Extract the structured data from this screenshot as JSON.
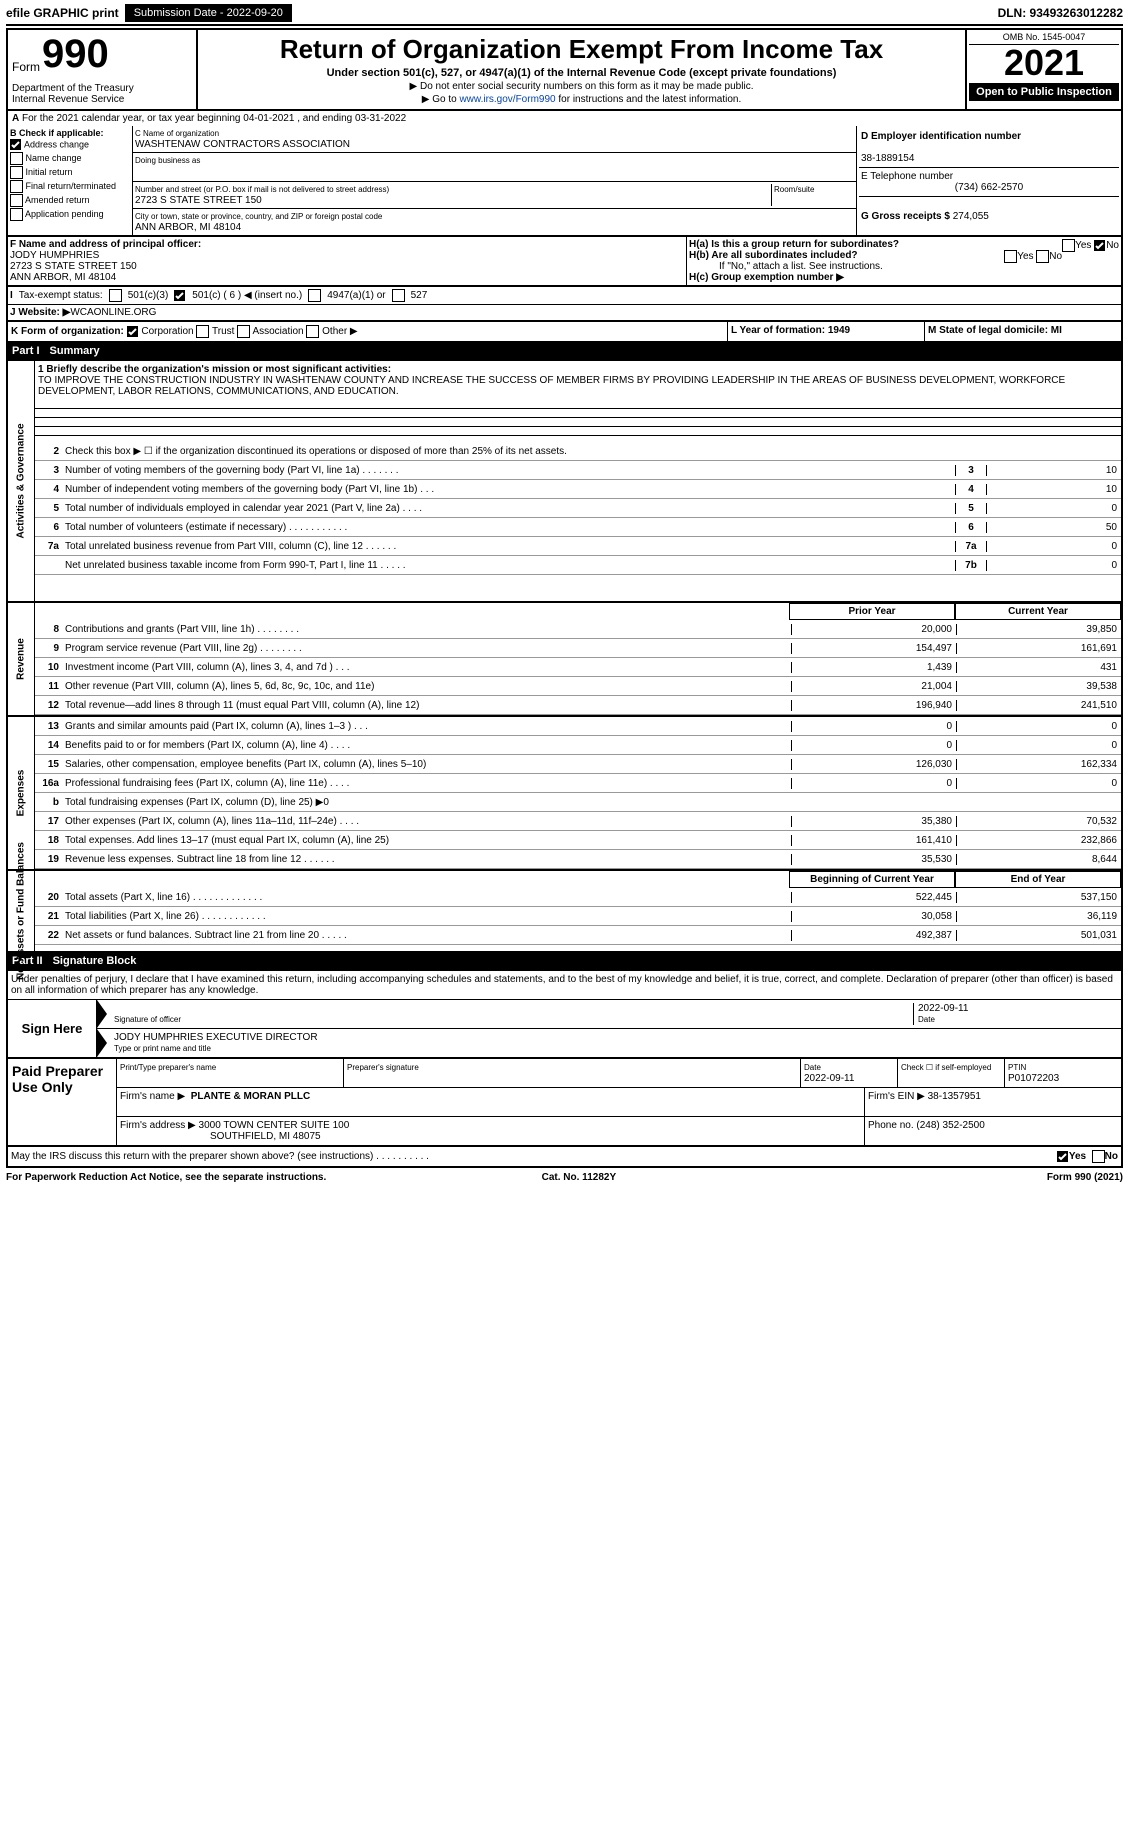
{
  "topbar": {
    "efile": "efile GRAPHIC print",
    "submit_btn": "Submission Date - 2022-09-20",
    "dln": "DLN: 93493263012282"
  },
  "header": {
    "form_word": "Form",
    "form_num": "990",
    "title": "Return of Organization Exempt From Income Tax",
    "sub": "Under section 501(c), 527, or 4947(a)(1) of the Internal Revenue Code (except private foundations)",
    "note1": "▶ Do not enter social security numbers on this form as it may be made public.",
    "note2_pre": "▶ Go to ",
    "note2_link": "www.irs.gov/Form990",
    "note2_post": " for instructions and the latest information.",
    "dept": "Department of the Treasury\nInternal Revenue Service",
    "omb": "OMB No. 1545-0047",
    "year": "2021",
    "open": "Open to Public Inspection"
  },
  "period": "For the 2021 calendar year, or tax year beginning 04-01-2021    , and ending 03-31-2022",
  "checkB": {
    "title": "B Check if applicable:",
    "items": [
      "Address change",
      "Name change",
      "Initial return",
      "Final return/terminated",
      "Amended return",
      "Application pending"
    ],
    "checked": [
      true,
      false,
      false,
      false,
      false,
      false
    ]
  },
  "blockC": {
    "name_lbl": "C Name of organization",
    "name": "WASHTENAW CONTRACTORS ASSOCIATION",
    "dba_lbl": "Doing business as",
    "dba": "",
    "street_lbl": "Number and street (or P.O. box if mail is not delivered to street address)",
    "room_lbl": "Room/suite",
    "street": "2723 S STATE STREET 150",
    "city_lbl": "City or town, state or province, country, and ZIP or foreign postal code",
    "city": "ANN ARBOR, MI  48104"
  },
  "blockD": {
    "ein_lbl": "D Employer identification number",
    "ein": "38-1889154",
    "phone_lbl": "E Telephone number",
    "phone": "(734) 662-2570",
    "gross_lbl": "G Gross receipts $",
    "gross": "274,055"
  },
  "blockF": {
    "lbl": "F Name and address of principal officer:",
    "l1": "JODY HUMPHRIES",
    "l2": "2723 S STATE STREET 150",
    "l3": "ANN ARBOR, MI  48104"
  },
  "blockH": {
    "ha": "H(a)  Is this a group return for subordinates?",
    "ha_yes": "Yes",
    "ha_no": "No",
    "hb": "H(b)  Are all subordinates included?",
    "hb_note": "If \"No,\" attach a list. See instructions.",
    "hc": "H(c)  Group exemption number ▶"
  },
  "taxstatus": {
    "lbl": "Tax-exempt status:",
    "o1": "501(c)(3)",
    "o2": "501(c) ( 6 ) ◀ (insert no.)",
    "o3": "4947(a)(1) or",
    "o4": "527"
  },
  "website": {
    "lbl": "J Website: ▶",
    "val": " WCAONLINE.ORG"
  },
  "krow": {
    "k": "K Form of organization:",
    "opts": [
      "Corporation",
      "Trust",
      "Association",
      "Other ▶"
    ],
    "checked": [
      true,
      false,
      false,
      false
    ],
    "l": "L Year of formation: 1949",
    "m": "M State of legal domicile: MI"
  },
  "part1": {
    "label": "Part I",
    "title": "Summary"
  },
  "mission": {
    "q": "1 Briefly describe the organization's mission or most significant activities:",
    "text": "TO IMPROVE THE CONSTRUCTION INDUSTRY IN WASHTENAW COUNTY AND INCREASE THE SUCCESS OF MEMBER FIRMS BY PROVIDING LEADERSHIP IN THE AREAS OF BUSINESS DEVELOPMENT, WORKFORCE DEVELOPMENT, LABOR RELATIONS, COMMUNICATIONS, AND EDUCATION."
  },
  "gov": {
    "vlabel": "Activities & Governance",
    "l2": "Check this box ▶ ☐ if the organization discontinued its operations or disposed of more than 25% of its net assets.",
    "rows": [
      {
        "n": "3",
        "t": "Number of voting members of the governing body (Part VI, line 1a)  .   .   .   .   .   .   .",
        "b": "3",
        "v": "10"
      },
      {
        "n": "4",
        "t": "Number of independent voting members of the governing body (Part VI, line 1b)  .   .   .",
        "b": "4",
        "v": "10"
      },
      {
        "n": "5",
        "t": "Total number of individuals employed in calendar year 2021 (Part V, line 2a)  .   .   .   .",
        "b": "5",
        "v": "0"
      },
      {
        "n": "6",
        "t": "Total number of volunteers (estimate if necessary)   .   .   .   .   .   .   .   .   .   .   .",
        "b": "6",
        "v": "50"
      },
      {
        "n": "7a",
        "t": "Total unrelated business revenue from Part VIII, column (C), line 12  .   .   .   .   .   .",
        "b": "7a",
        "v": "0"
      },
      {
        "n": "",
        "t": "Net unrelated business taxable income from Form 990-T, Part I, line 11  .   .   .   .   .",
        "b": "7b",
        "v": "0"
      }
    ]
  },
  "fincols": {
    "c1": "Prior Year",
    "c2": "Current Year"
  },
  "rev": {
    "vlabel": "Revenue",
    "rows": [
      {
        "n": "8",
        "t": "Contributions and grants (Part VIII, line 1h)   .   .   .   .   .   .   .   .",
        "v1": "20,000",
        "v2": "39,850"
      },
      {
        "n": "9",
        "t": "Program service revenue (Part VIII, line 2g)   .   .   .   .   .   .   .   .",
        "v1": "154,497",
        "v2": "161,691"
      },
      {
        "n": "10",
        "t": "Investment income (Part VIII, column (A), lines 3, 4, and 7d )   .   .   .",
        "v1": "1,439",
        "v2": "431"
      },
      {
        "n": "11",
        "t": "Other revenue (Part VIII, column (A), lines 5, 6d, 8c, 9c, 10c, and 11e)",
        "v1": "21,004",
        "v2": "39,538"
      },
      {
        "n": "12",
        "t": "Total revenue—add lines 8 through 11 (must equal Part VIII, column (A), line 12)",
        "v1": "196,940",
        "v2": "241,510"
      }
    ]
  },
  "exp": {
    "vlabel": "Expenses",
    "rows": [
      {
        "n": "13",
        "t": "Grants and similar amounts paid (Part IX, column (A), lines 1–3 )  .   .   .",
        "v1": "0",
        "v2": "0"
      },
      {
        "n": "14",
        "t": "Benefits paid to or for members (Part IX, column (A), line 4)  .   .   .   .",
        "v1": "0",
        "v2": "0"
      },
      {
        "n": "15",
        "t": "Salaries, other compensation, employee benefits (Part IX, column (A), lines 5–10)",
        "v1": "126,030",
        "v2": "162,334"
      },
      {
        "n": "16a",
        "t": "Professional fundraising fees (Part IX, column (A), line 11e)  .   .   .   .",
        "v1": "0",
        "v2": "0"
      },
      {
        "n": "b",
        "t": "Total fundraising expenses (Part IX, column (D), line 25) ▶0",
        "v1": "",
        "v2": "",
        "grey": true
      },
      {
        "n": "17",
        "t": "Other expenses (Part IX, column (A), lines 11a–11d, 11f–24e)  .   .   .   .",
        "v1": "35,380",
        "v2": "70,532"
      },
      {
        "n": "18",
        "t": "Total expenses. Add lines 13–17 (must equal Part IX, column (A), line 25)",
        "v1": "161,410",
        "v2": "232,866"
      },
      {
        "n": "19",
        "t": "Revenue less expenses. Subtract line 18 from line 12  .   .   .   .   .   .",
        "v1": "35,530",
        "v2": "8,644"
      }
    ]
  },
  "net": {
    "vlabel": "Net Assets or Fund Balances",
    "cols": {
      "c1": "Beginning of Current Year",
      "c2": "End of Year"
    },
    "rows": [
      {
        "n": "20",
        "t": "Total assets (Part X, line 16)  .   .   .   .   .   .   .   .   .   .   .   .   .",
        "v1": "522,445",
        "v2": "537,150"
      },
      {
        "n": "21",
        "t": "Total liabilities (Part X, line 26)  .   .   .   .   .   .   .   .   .   .   .   .",
        "v1": "30,058",
        "v2": "36,119"
      },
      {
        "n": "22",
        "t": "Net assets or fund balances. Subtract line 21 from line 20  .   .   .   .   .",
        "v1": "492,387",
        "v2": "501,031"
      }
    ]
  },
  "part2": {
    "label": "Part II",
    "title": "Signature Block"
  },
  "sig": {
    "decl": "Under penalties of perjury, I declare that I have examined this return, including accompanying schedules and statements, and to the best of my knowledge and belief, it is true, correct, and complete. Declaration of preparer (other than officer) is based on all information of which preparer has any knowledge.",
    "sign_here": "Sign Here",
    "sig_officer": "Signature of officer",
    "date": "2022-09-11",
    "date_lbl": "Date",
    "name": "JODY HUMPHRIES  EXECUTIVE DIRECTOR",
    "name_lbl": "Type or print name and title"
  },
  "paid": {
    "title": "Paid Preparer Use Only",
    "h": [
      "Print/Type preparer's name",
      "Preparer's signature",
      "Date",
      "Check ☐ if self-employed",
      "PTIN"
    ],
    "r1": [
      "",
      "",
      "2022-09-11",
      "",
      "P01072203"
    ],
    "firm_lbl": "Firm's name   ▶",
    "firm": "PLANTE & MORAN PLLC",
    "ein_lbl": "Firm's EIN ▶",
    "ein": "38-1357951",
    "addr_lbl": "Firm's address ▶",
    "addr1": "3000 TOWN CENTER SUITE 100",
    "addr2": "SOUTHFIELD, MI  48075",
    "phone_lbl": "Phone no.",
    "phone": "(248) 352-2500"
  },
  "may": "May the IRS discuss this return with the preparer shown above? (see instructions)   .   .   .   .   .   .   .   .   .   .",
  "may_yes": "Yes",
  "may_no": "No",
  "footer": {
    "l": "For Paperwork Reduction Act Notice, see the separate instructions.",
    "c": "Cat. No. 11282Y",
    "r": "Form 990 (2021)"
  }
}
